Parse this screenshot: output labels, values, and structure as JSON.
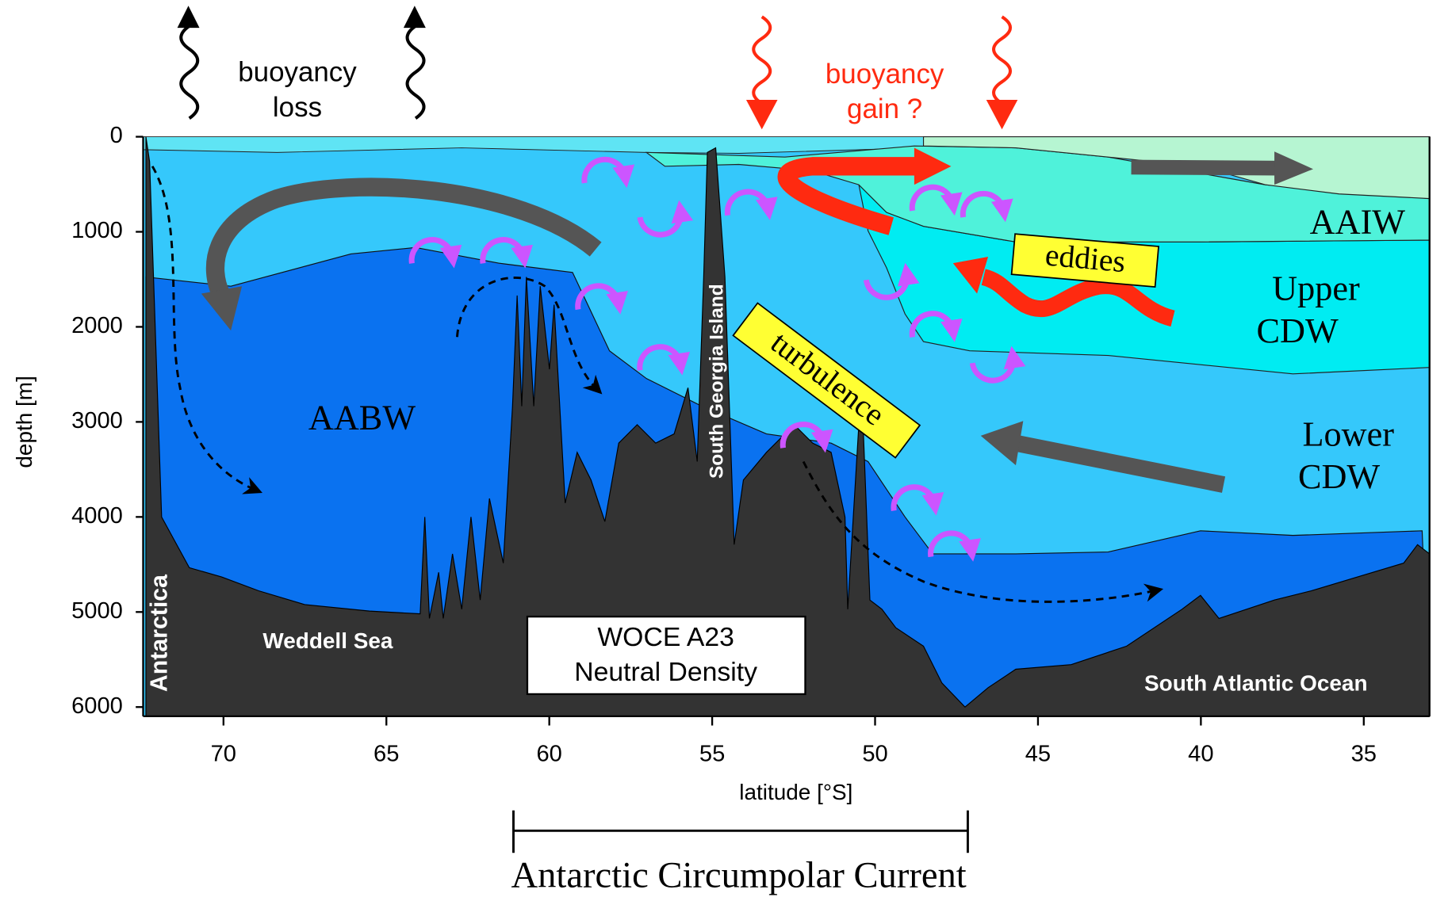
{
  "top_labels": {
    "buoyancy_loss": [
      "buoyancy",
      "loss"
    ],
    "buoyancy_gain": [
      "buoyancy",
      "gain ?"
    ]
  },
  "water_masses": {
    "aaiw": "AAIW",
    "upper_cdw": [
      "Upper",
      "CDW"
    ],
    "lower_cdw": [
      "Lower",
      "CDW"
    ],
    "aabw": "AABW"
  },
  "processes": {
    "eddies": "eddies",
    "turbulence": "turbulence"
  },
  "places": {
    "antarctica": "Antarctica",
    "weddell_sea": "Weddell Sea",
    "south_georgia": "South Georgia Island",
    "south_atlantic": "South Atlantic Ocean"
  },
  "section_box": [
    "WOCE A23",
    "Neutral Density"
  ],
  "y_axis": {
    "label": "depth [m]",
    "ticks": [
      0,
      1000,
      2000,
      3000,
      4000,
      5000,
      6000
    ]
  },
  "x_axis": {
    "label": "latitude [°S]",
    "ticks": [
      70,
      65,
      60,
      55,
      50,
      45,
      40,
      35
    ]
  },
  "current": "Antarctic Circumpolar Current"
}
